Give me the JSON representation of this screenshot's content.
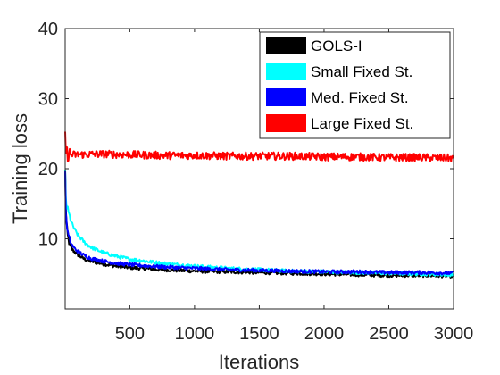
{
  "chart_data": {
    "type": "line",
    "title": "",
    "xlabel": "Iterations",
    "ylabel": "Training loss",
    "xlim": [
      1,
      3000
    ],
    "ylim": [
      0,
      40
    ],
    "xticks": [
      500,
      1000,
      1500,
      2000,
      2500,
      3000
    ],
    "yticks": [
      10,
      20,
      30,
      40
    ],
    "grid": false,
    "legend_position": "top-right",
    "series": [
      {
        "name": "GOLS-I",
        "color": "#000000",
        "x": [
          1,
          5,
          10,
          20,
          30,
          50,
          75,
          100,
          150,
          200,
          300,
          400,
          500,
          750,
          1000,
          1250,
          1500,
          1750,
          2000,
          2250,
          2500,
          2750,
          3000
        ],
        "y": [
          19.5,
          15,
          12.5,
          10.5,
          9.6,
          8.6,
          8.1,
          7.7,
          7.1,
          6.8,
          6.4,
          6.1,
          5.9,
          5.6,
          5.4,
          5.3,
          5.2,
          5.1,
          5.0,
          4.9,
          4.8,
          4.8,
          4.7
        ]
      },
      {
        "name": "Small Fixed St.",
        "color": "#00ffff",
        "x": [
          1,
          5,
          10,
          20,
          30,
          50,
          75,
          100,
          150,
          200,
          300,
          400,
          500,
          750,
          1000,
          1250,
          1500,
          1750,
          2000,
          2250,
          2500,
          2750,
          3000
        ],
        "y": [
          19.5,
          16,
          15,
          14.2,
          13.5,
          12.3,
          11.3,
          10.5,
          9.5,
          8.8,
          8.0,
          7.5,
          7.1,
          6.5,
          6.1,
          5.8,
          5.6,
          5.4,
          5.3,
          5.2,
          5.1,
          5.0,
          4.9
        ]
      },
      {
        "name": "Med. Fixed St.",
        "color": "#0000ff",
        "x": [
          1,
          5,
          10,
          20,
          30,
          50,
          75,
          100,
          150,
          200,
          300,
          400,
          500,
          750,
          1000,
          1250,
          1500,
          1750,
          2000,
          2250,
          2500,
          2750,
          3000
        ],
        "y": [
          19.5,
          14.5,
          12.5,
          11,
          10.1,
          9.2,
          8.6,
          8.2,
          7.6,
          7.2,
          6.8,
          6.5,
          6.3,
          6.0,
          5.8,
          5.6,
          5.5,
          5.4,
          5.3,
          5.3,
          5.2,
          5.2,
          5.1
        ]
      },
      {
        "name": "Large Fixed St.",
        "color": "#ff0000",
        "x": [
          1,
          5,
          10,
          20,
          50,
          100,
          250,
          500,
          750,
          1000,
          1250,
          1500,
          1750,
          2000,
          2250,
          2500,
          2750,
          3000
        ],
        "y": [
          25,
          22.8,
          22.3,
          22.1,
          22.0,
          22.0,
          22.1,
          22.0,
          21.9,
          21.9,
          21.8,
          21.8,
          21.8,
          21.7,
          21.7,
          21.6,
          21.6,
          21.5
        ]
      }
    ]
  }
}
